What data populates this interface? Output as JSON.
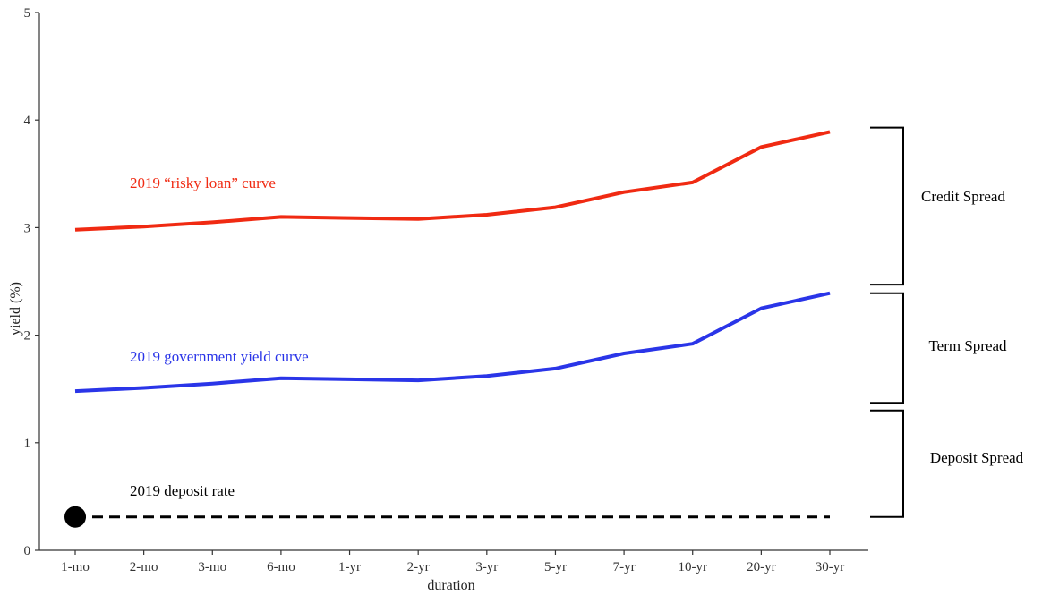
{
  "chart_data": {
    "type": "line",
    "title": "",
    "xlabel": "duration",
    "ylabel": "yield (%)",
    "categories": [
      "1-mo",
      "2-mo",
      "3-mo",
      "6-mo",
      "1-yr",
      "2-yr",
      "3-yr",
      "5-yr",
      "7-yr",
      "10-yr",
      "20-yr",
      "30-yr"
    ],
    "ylim": [
      0,
      5
    ],
    "yticks": [
      "0",
      "1",
      "2",
      "3",
      "4",
      "5"
    ],
    "grid": false,
    "series": [
      {
        "label": "2019 “risky loan” curve",
        "color": "#f02a12",
        "values": [
          2.98,
          3.01,
          3.05,
          3.1,
          3.09,
          3.08,
          3.12,
          3.19,
          3.33,
          3.42,
          3.75,
          3.89
        ]
      },
      {
        "label": "2019 government yield curve",
        "color": "#2a35e8",
        "values": [
          1.48,
          1.51,
          1.55,
          1.6,
          1.59,
          1.58,
          1.62,
          1.69,
          1.83,
          1.92,
          2.25,
          2.39
        ]
      },
      {
        "label": "2019 deposit rate",
        "color": "#000000",
        "style": "dashed",
        "values": [
          0.31,
          0.31,
          0.31,
          0.31,
          0.31,
          0.31,
          0.31,
          0.31,
          0.31,
          0.31,
          0.31,
          0.31
        ]
      }
    ],
    "brackets": [
      {
        "label": "Credit Spread",
        "from": 2.47,
        "to": 3.93
      },
      {
        "label": "Term Spread",
        "from": 1.37,
        "to": 2.39
      },
      {
        "label": "Deposit Spread",
        "from": 0.31,
        "to": 1.3
      }
    ]
  }
}
